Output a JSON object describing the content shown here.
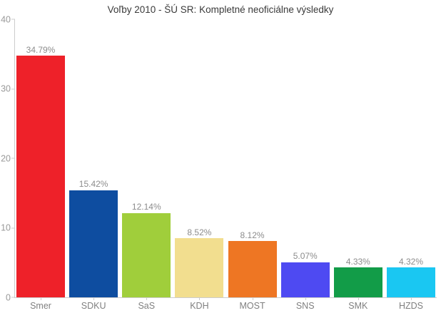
{
  "chart_data": {
    "type": "bar",
    "title": "Voľby 2010 - ŠÚ SR: Kompletné neoficiálne výsledky",
    "categories": [
      "Smer",
      "SDKU",
      "SaS",
      "KDH",
      "MOST",
      "SNS",
      "SMK",
      "HZDS"
    ],
    "values": [
      34.79,
      15.42,
      12.14,
      8.52,
      8.12,
      5.07,
      4.33,
      4.32
    ],
    "value_labels": [
      "34.79%",
      "15.42%",
      "12.14%",
      "8.52%",
      "8.12%",
      "5.07%",
      "4.33%",
      "4.32%"
    ],
    "bar_colors": [
      "#EE2129",
      "#0E4DA0",
      "#A0CE3B",
      "#F2DE8F",
      "#EE7623",
      "#4E4AF2",
      "#129C48",
      "#1AC7F2"
    ],
    "y_ticks": [
      0,
      10,
      20,
      30,
      40
    ],
    "y_tick_labels": [
      "0",
      "10",
      "20",
      "30",
      "40"
    ],
    "ylim": [
      0,
      40
    ],
    "xlabel": "",
    "ylabel": "",
    "grid": false,
    "legend": "none",
    "colors": {
      "axis": "#cccccc",
      "tick_label": "#999999",
      "value_label": "#8c8c8c",
      "category_label": "#808080",
      "title": "#3a3a3a",
      "background": "#ffffff"
    }
  }
}
